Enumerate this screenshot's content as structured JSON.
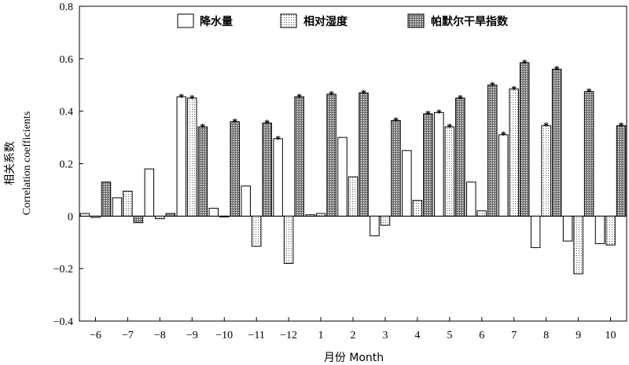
{
  "chart_data": {
    "type": "bar",
    "title": "",
    "xlabel": "月份 Month",
    "ylabel_cn": "相关系数",
    "ylabel_en": "Correlation coefficients",
    "ylim": [
      -0.4,
      0.8
    ],
    "yticks": [
      -0.4,
      -0.2,
      0,
      0.2,
      0.4,
      0.6,
      0.8
    ],
    "ytick_labels": [
      "−0.4",
      "−0.2",
      "0",
      "0.2",
      "0.4",
      "0.6",
      "0.8"
    ],
    "categories": [
      "−6",
      "−7",
      "−8",
      "−9",
      "−10",
      "−11",
      "−12",
      "1",
      "2",
      "3",
      "4",
      "5",
      "6",
      "7",
      "8",
      "9",
      "10"
    ],
    "legend_position": "top-center",
    "significance_marker": "*",
    "series": [
      {
        "name": "降水量",
        "pattern": "white",
        "values": [
          0.01,
          0.07,
          0.18,
          0.455,
          0.03,
          0.115,
          0.295,
          0.005,
          0.3,
          -0.075,
          0.25,
          0.395,
          0.13,
          0.31,
          -0.12,
          -0.095,
          -0.105
        ],
        "significant": [
          false,
          false,
          false,
          true,
          false,
          false,
          true,
          false,
          false,
          false,
          false,
          true,
          false,
          true,
          false,
          false,
          false
        ]
      },
      {
        "name": "相对湿度",
        "pattern": "dots",
        "values": [
          -0.005,
          0.095,
          -0.01,
          0.45,
          0.0,
          -0.115,
          -0.18,
          0.01,
          0.15,
          -0.035,
          0.06,
          0.34,
          0.02,
          0.485,
          0.345,
          -0.22,
          -0.11
        ],
        "significant": [
          false,
          false,
          false,
          true,
          false,
          false,
          false,
          false,
          false,
          false,
          false,
          true,
          false,
          true,
          true,
          false,
          false
        ]
      },
      {
        "name": "帕默尔干旱指数",
        "pattern": "cross",
        "values": [
          0.13,
          -0.025,
          0.01,
          0.34,
          0.36,
          0.355,
          0.455,
          0.465,
          0.47,
          0.365,
          0.39,
          0.45,
          0.5,
          0.585,
          0.56,
          0.475,
          0.345
        ],
        "significant": [
          false,
          false,
          false,
          true,
          true,
          true,
          true,
          true,
          true,
          true,
          true,
          true,
          true,
          true,
          true,
          true,
          true
        ]
      }
    ]
  }
}
